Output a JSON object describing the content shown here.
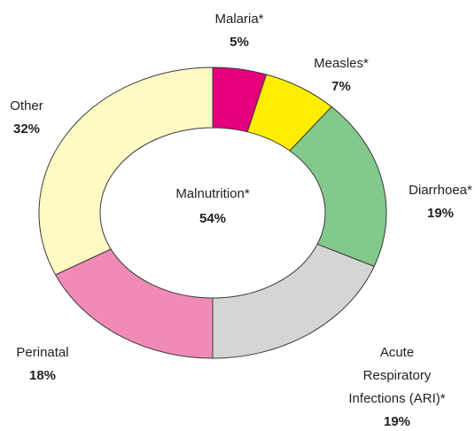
{
  "chart_data": {
    "type": "donut",
    "categories": [
      "Malaria*",
      "Measles*",
      "Diarrhoea*",
      "Acute\nRespiratory\nInfections (ARI)*",
      "Perinatal",
      "Other"
    ],
    "values": [
      5,
      7,
      19,
      19,
      18,
      32
    ],
    "value_labels": [
      "5%",
      "7%",
      "19%",
      "19%",
      "18%",
      "32%"
    ],
    "colors": [
      "#e5007e",
      "#ffed00",
      "#82c98b",
      "#d4d5d6",
      "#f08bb8",
      "#fff9c4"
    ],
    "center_title": "Malnutrition*",
    "center_value_label": "54%"
  }
}
